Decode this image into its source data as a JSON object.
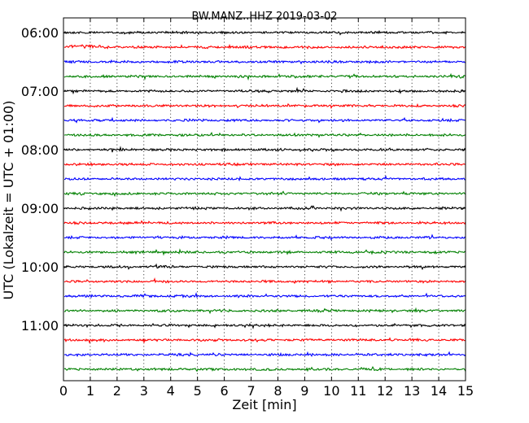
{
  "chart_data": {
    "type": "line",
    "title": "BW.MANZ..HHZ 2019-03-02",
    "xlabel": "Zeit  [min]",
    "ylabel": "UTC (Lokalzeit = UTC + 01:00)",
    "xlim": [
      0,
      15
    ],
    "x_ticks": [
      "0",
      "1",
      "2",
      "3",
      "4",
      "5",
      "6",
      "7",
      "8",
      "9",
      "10",
      "11",
      "12",
      "13",
      "14",
      "15"
    ],
    "y_ticks": [
      "06:00",
      "07:00",
      "08:00",
      "09:00",
      "10:00",
      "11:00"
    ],
    "grid": "vertical dotted lines at each minute",
    "trace_start_utc": [
      "06:00",
      "06:15",
      "06:30",
      "06:45",
      "07:00",
      "07:15",
      "07:30",
      "07:45",
      "08:00",
      "08:15",
      "08:30",
      "08:45",
      "09:00",
      "09:15",
      "09:30",
      "09:45",
      "10:00",
      "10:15",
      "10:30",
      "10:45",
      "11:00",
      "11:15",
      "11:30",
      "11:45"
    ],
    "trace_color_cycle": [
      "#000000",
      "#ff0000",
      "#0000ff",
      "#008000"
    ],
    "minutes_per_trace": 15
  }
}
